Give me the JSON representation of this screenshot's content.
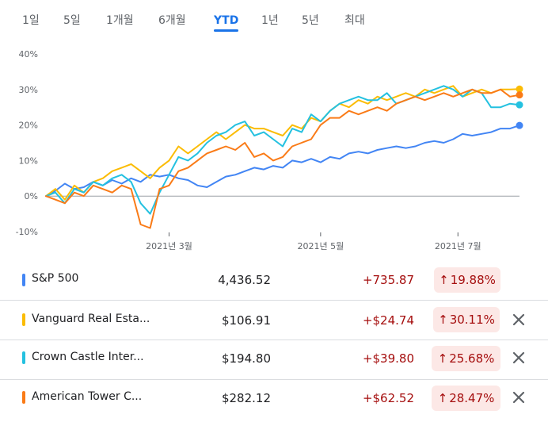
{
  "range_tabs": {
    "items": [
      "1일",
      "5일",
      "1개월",
      "6개월",
      "YTD",
      "1년",
      "5년",
      "최대"
    ],
    "active": "YTD"
  },
  "colors": {
    "sp500": "#4285f4",
    "vanguard": "#fbbc04",
    "crown": "#24c1e0",
    "american": "#fa7b17",
    "gain_text": "#a50e0e",
    "gain_badge_bg": "#fce8e6",
    "tab_active": "#1a73e8"
  },
  "chart_data": {
    "type": "line",
    "y_tick_labels": [
      "40%",
      "30%",
      "20%",
      "10%",
      "0%",
      "-10%"
    ],
    "x_tick_labels": [
      "2021년 3월",
      "2021년 5월",
      "2021년 7월"
    ],
    "ylim": [
      -10,
      40
    ],
    "grid": false,
    "series": [
      {
        "name": "S&P 500",
        "key": "sp500",
        "x": [
          0,
          2,
          4,
          6,
          8,
          10,
          12,
          14,
          16,
          18,
          20,
          22,
          24,
          26,
          28,
          30,
          32,
          34,
          36,
          38,
          40,
          42,
          44,
          46,
          48,
          50,
          52,
          54,
          56,
          58,
          60,
          62,
          64,
          66,
          68,
          70,
          72,
          74,
          76,
          78,
          80,
          82,
          84,
          86,
          88,
          90,
          92,
          94,
          96,
          98,
          100
        ],
        "y": [
          0,
          1.5,
          3.5,
          2,
          2.5,
          4,
          3,
          4.5,
          3.5,
          5,
          4,
          6,
          5.5,
          6,
          5,
          4.5,
          3,
          2.5,
          4,
          5.5,
          6,
          7,
          8,
          7.5,
          8.5,
          8,
          10,
          9.5,
          10.5,
          9.5,
          11,
          10.5,
          12,
          12.5,
          12,
          13,
          13.5,
          14,
          13.5,
          14,
          15,
          15.5,
          15,
          16,
          17.5,
          17,
          17.5,
          18,
          19,
          19,
          19.88
        ]
      },
      {
        "name": "Vanguard Real Estate",
        "key": "vanguard",
        "x": [
          0,
          2,
          4,
          6,
          8,
          10,
          12,
          14,
          16,
          18,
          20,
          22,
          24,
          26,
          28,
          30,
          32,
          34,
          36,
          38,
          40,
          42,
          44,
          46,
          48,
          50,
          52,
          54,
          56,
          58,
          60,
          62,
          64,
          66,
          68,
          70,
          72,
          74,
          76,
          78,
          80,
          82,
          84,
          86,
          88,
          90,
          92,
          94,
          96,
          98,
          100
        ],
        "y": [
          0,
          2,
          -1,
          3,
          1,
          4,
          5,
          7,
          8,
          9,
          7,
          5,
          8,
          10,
          14,
          12,
          14,
          16,
          18,
          16,
          18,
          20,
          19,
          19,
          18,
          17,
          20,
          19,
          22,
          21,
          24,
          26,
          25,
          27,
          26,
          28,
          27,
          28,
          29,
          28,
          30,
          29,
          30,
          31,
          28,
          29,
          30,
          29,
          30,
          30,
          30.11
        ]
      },
      {
        "name": "Crown Castle International",
        "key": "crown",
        "x": [
          0,
          2,
          4,
          6,
          8,
          10,
          12,
          14,
          16,
          18,
          20,
          22,
          24,
          26,
          28,
          30,
          32,
          34,
          36,
          38,
          40,
          42,
          44,
          46,
          48,
          50,
          52,
          54,
          56,
          58,
          60,
          62,
          64,
          66,
          68,
          70,
          72,
          74,
          76,
          78,
          80,
          82,
          84,
          86,
          88,
          90,
          92,
          94,
          96,
          98,
          100
        ],
        "y": [
          0,
          1,
          -2,
          2,
          1,
          4,
          3,
          5,
          6,
          4,
          -2,
          -5,
          1,
          6,
          11,
          10,
          12,
          15,
          17,
          18,
          20,
          21,
          17,
          18,
          16,
          14,
          19,
          18,
          23,
          21,
          24,
          26,
          27,
          28,
          27,
          27,
          29,
          26,
          27,
          28,
          29,
          30,
          31,
          30,
          28,
          30,
          29,
          25,
          25,
          26,
          25.68
        ]
      },
      {
        "name": "American Tower Corp",
        "key": "american",
        "x": [
          0,
          2,
          4,
          6,
          8,
          10,
          12,
          14,
          16,
          18,
          20,
          22,
          24,
          26,
          28,
          30,
          32,
          34,
          36,
          38,
          40,
          42,
          44,
          46,
          48,
          50,
          52,
          54,
          56,
          58,
          60,
          62,
          64,
          66,
          68,
          70,
          72,
          74,
          76,
          78,
          80,
          82,
          84,
          86,
          88,
          90,
          92,
          94,
          96,
          98,
          100
        ],
        "y": [
          0,
          -1,
          -2,
          1,
          0,
          3,
          2,
          1,
          3,
          2,
          -8,
          -9,
          2,
          3,
          7,
          8,
          10,
          12,
          13,
          14,
          13,
          15,
          11,
          12,
          10,
          11,
          14,
          15,
          16,
          20,
          22,
          22,
          24,
          23,
          24,
          25,
          24,
          26,
          27,
          28,
          27,
          28,
          29,
          28,
          29,
          30,
          29,
          29,
          30,
          28,
          28.47
        ]
      }
    ]
  },
  "rows": [
    {
      "name": "S&P 500",
      "price": "4,436.52",
      "change": "+735.87",
      "pct": "19.88%",
      "removable": false
    },
    {
      "name": "Vanguard Real Esta...",
      "price": "$106.91",
      "change": "+$24.74",
      "pct": "30.11%",
      "removable": true
    },
    {
      "name": "Crown Castle Inter...",
      "price": "$194.80",
      "change": "+$39.80",
      "pct": "25.68%",
      "removable": true
    },
    {
      "name": "American Tower C...",
      "price": "$282.12",
      "change": "+$62.52",
      "pct": "28.47%",
      "removable": true
    }
  ]
}
